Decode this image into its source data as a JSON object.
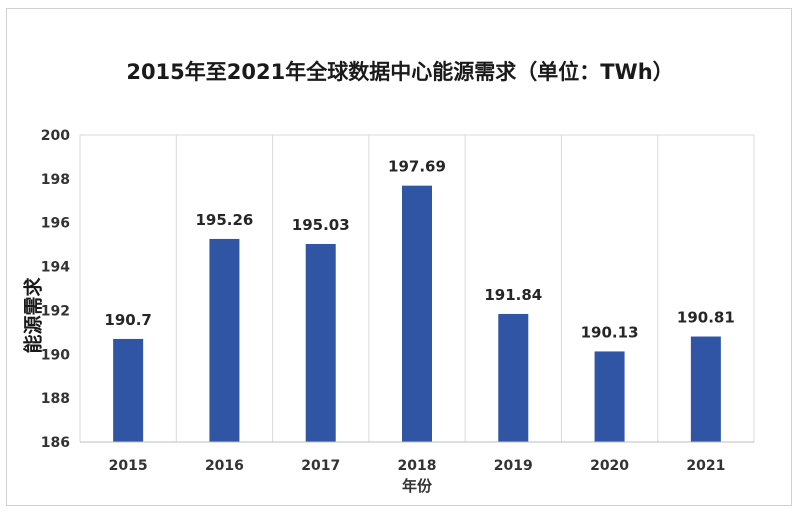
{
  "chart_data": {
    "type": "bar",
    "title": "2015年至2021年全球数据中心能源需求（单位：TWh）",
    "xlabel": "年份",
    "ylabel": "能源需求",
    "categories": [
      "2015",
      "2016",
      "2017",
      "2018",
      "2019",
      "2020",
      "2021"
    ],
    "values": [
      190.7,
      195.26,
      195.03,
      197.69,
      191.84,
      190.13,
      190.81
    ],
    "value_labels": [
      "190.7",
      "195.26",
      "195.03",
      "197.69",
      "191.84",
      "190.13",
      "190.81"
    ],
    "ylim": [
      186,
      200
    ],
    "yticks": [
      186,
      188,
      190,
      192,
      194,
      196,
      198,
      200
    ],
    "bar_color": "#2f55a4",
    "grid": "vertical",
    "legend": "none"
  }
}
